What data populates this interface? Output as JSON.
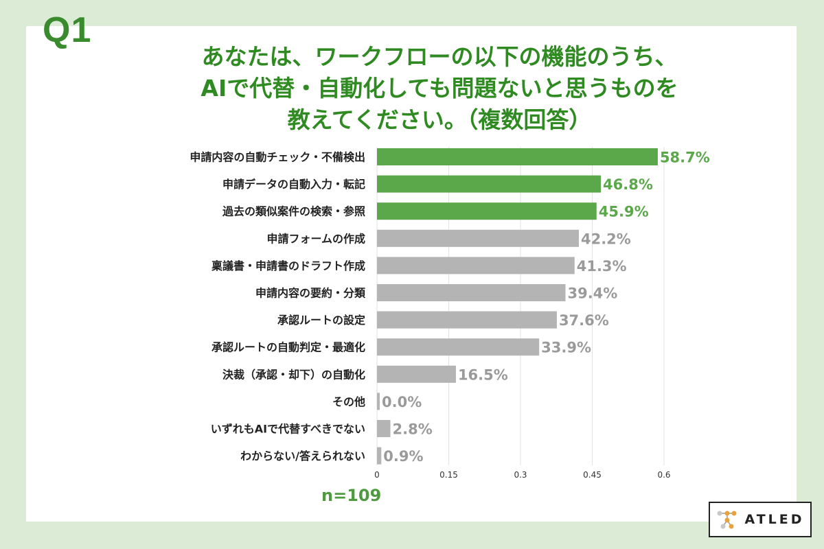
{
  "question_label": "Q1",
  "colors": {
    "highlight": "#5aa84a",
    "default": "#b4b4b4",
    "highlight_text": "#5aa84a",
    "default_text": "#9a9a9a"
  },
  "sample_note": "n=109",
  "logo": {
    "text": "ATLED",
    "icon": "atled-molecule-icon"
  },
  "chart_data": {
    "type": "bar",
    "orientation": "horizontal",
    "title": "あなたは、ワークフローの以下の機能のうち、\nAIで代替・自動化しても問題ないと思うものを\n教えてください。（複数回答）",
    "categories": [
      "申請内容の自動チェック・不備検出",
      "申請データの自動入力・転記",
      "過去の類似案件の検索・参照",
      "申請フォームの作成",
      "稟議書・申請書のドラフト作成",
      "申請内容の要約・分類",
      "承認ルートの設定",
      "承認ルートの自動判定・最適化",
      "決裁（承認・却下）の自動化",
      "その他",
      "いずれもAIで代替すべきでない",
      "わからない/答えられない"
    ],
    "values": [
      0.587,
      0.468,
      0.459,
      0.422,
      0.413,
      0.394,
      0.376,
      0.339,
      0.165,
      0.0,
      0.028,
      0.009
    ],
    "labels": [
      "58.7%",
      "46.8%",
      "45.9%",
      "42.2%",
      "41.3%",
      "39.4%",
      "37.6%",
      "33.9%",
      "16.5%",
      "0.0%",
      "2.8%",
      "0.9%"
    ],
    "highlighted_top": 3,
    "xlim": [
      0,
      0.6
    ],
    "xticks": [
      0,
      0.15,
      0.3,
      0.45,
      0.6
    ],
    "xtick_labels": [
      "0",
      "0.15",
      "0.3",
      "0.45",
      "0.6"
    ],
    "grid": true
  }
}
